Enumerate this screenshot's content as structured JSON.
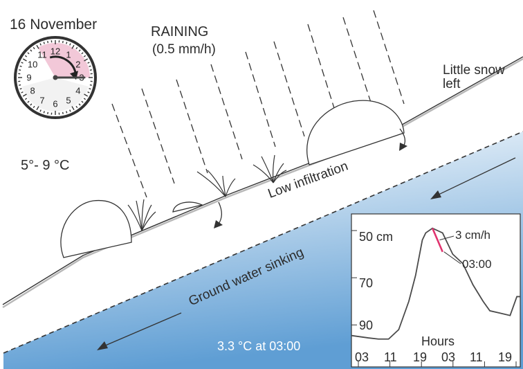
{
  "scene": {
    "date": "16 November",
    "weather": "RAINING",
    "rain_rate": "(0.5 mm/h)",
    "snow_note": "Little snow left",
    "air_temp": "5°- 9 °C",
    "infiltration": "Low infiltration",
    "ground_water": "Ground water sinking",
    "ground_water_temp": "3.3 °C at 03:00",
    "clock": {
      "hour": 3,
      "minute": 0,
      "numerals": [
        "12",
        "1",
        "2",
        "3",
        "4",
        "5",
        "6",
        "7",
        "8",
        "9",
        "10",
        "11"
      ],
      "highlight_from_hour": 11,
      "highlight_to_hour": 3
    }
  },
  "colors": {
    "line": "#333333",
    "accent": "#e0336e",
    "clock_sector": "#f2c8d8",
    "water_top": "#ffffff",
    "water_bottom": "#5f9ed4"
  },
  "chart_data": {
    "type": "line",
    "xlabel": "Hours",
    "x_tick_labels": [
      "03",
      "11",
      "19",
      "03",
      "11",
      "19"
    ],
    "y_tick_labels": [
      "50 cm",
      "70",
      "90"
    ],
    "y_ticks": [
      50,
      70,
      90
    ],
    "y_inverted": true,
    "ylim": [
      45,
      99
    ],
    "xlim": [
      0,
      50
    ],
    "series": [
      {
        "x": [
          0,
          5,
          8,
          11,
          14,
          17,
          19,
          21,
          22,
          24,
          27,
          30,
          33,
          36,
          39,
          41,
          44,
          47,
          49,
          50
        ],
        "y": [
          94.5,
          95.5,
          96,
          96,
          92,
          80,
          69,
          54,
          51,
          49,
          51,
          60,
          64,
          73,
          80,
          84,
          85,
          86,
          78,
          78
        ]
      }
    ],
    "highlight": {
      "x": [
        24,
        27
      ],
      "y": [
        49,
        59
      ]
    },
    "annotations": [
      "3 cm/h",
      "03:00"
    ]
  }
}
